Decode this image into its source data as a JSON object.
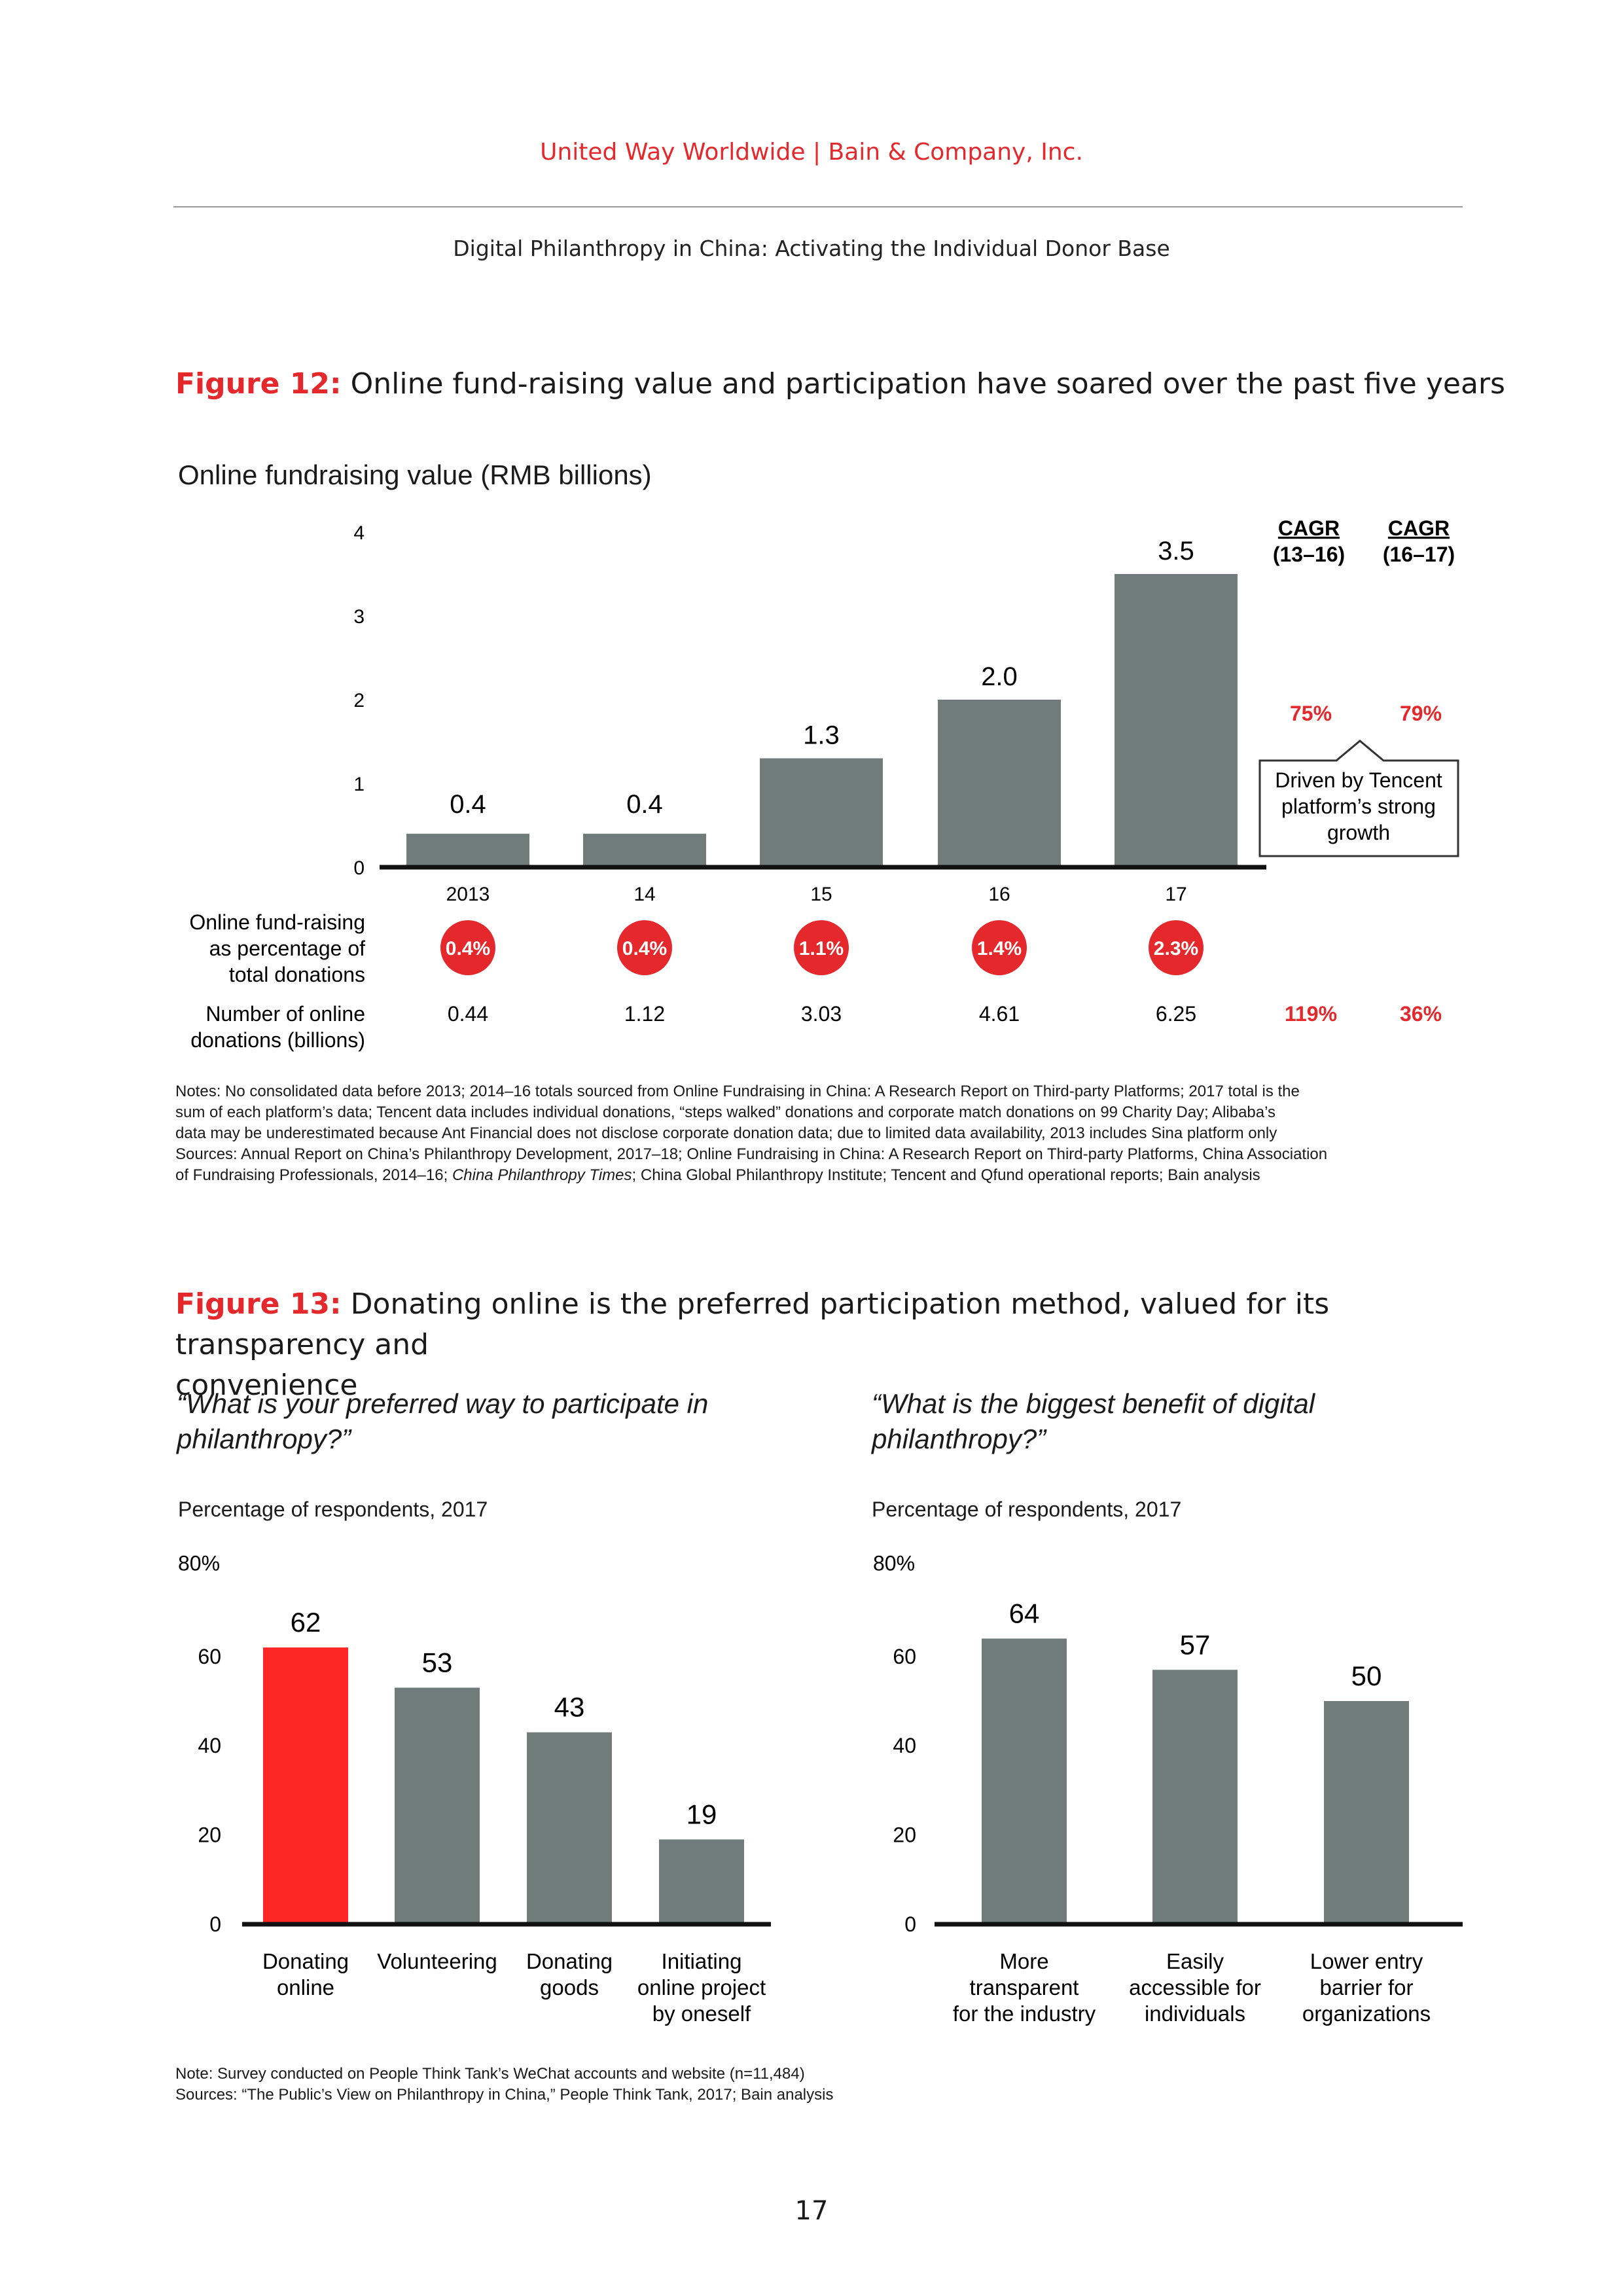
{
  "header": {
    "org": "United Way Worldwide  |  Bain & Company, Inc.",
    "report_title": "Digital Philanthropy in China: Activating the Individual Donor Base"
  },
  "figure12": {
    "label": "Figure 12:",
    "title": " Online fund-raising value and participation have soared over the past five years",
    "cagr_headers": [
      {
        "line1": "CAGR",
        "line2": "(13–16)"
      },
      {
        "line1": "CAGR",
        "line2": "(16–17)"
      }
    ],
    "value_cagr": [
      "75%",
      "79%"
    ],
    "callout": [
      "Driven by Tencent",
      "platform’s strong",
      "growth"
    ],
    "row1_label": [
      "Online fund-raising",
      "as percentage of",
      "total donations"
    ],
    "row1_values": [
      "0.4%",
      "0.4%",
      "1.1%",
      "1.4%",
      "2.3%"
    ],
    "row2_label": [
      "Number of online",
      "donations (billions)"
    ],
    "row2_values": [
      "0.44",
      "1.12",
      "3.03",
      "4.61",
      "6.25"
    ],
    "row2_cagr": [
      "119%",
      "36%"
    ],
    "notes": [
      "Notes: No consolidated data before 2013; 2014–16 totals sourced from Online Fundraising in China: A Research Report on Third-party Platforms; 2017 total is the",
      "sum of each platform’s data; Tencent data includes individual donations, “steps walked” donations and corporate match donations on 99 Charity Day; Alibaba’s",
      "data may be underestimated because Ant Financial does not disclose corporate donation data; due to limited data availability, 2013 includes Sina platform only",
      "Sources: Annual Report on China’s Philanthropy Development, 2017–18; Online Fundraising in China: A Research Report on Third-party Platforms, China Association",
      "of Fundraising Professionals, 2014–16; "
    ],
    "notes_italic": "China Philanthropy Times",
    "notes_end": "; China Global Philanthropy Institute; Tencent and Qfund operational reports; Bain analysis"
  },
  "figure13": {
    "label": "Figure 13:",
    "title_line1": " Donating online is the preferred participation method, valued for its transparency and",
    "title_line2": "convenience",
    "left_question": [
      "“What is your preferred way to participate in",
      "philanthropy?”"
    ],
    "right_question": [
      "“What is the biggest benefit of digital",
      "philanthropy?”"
    ],
    "left_subtitle": "Percentage of respondents, 2017",
    "right_subtitle": "Percentage of respondents, 2017",
    "note": "Note: Survey conducted on People Think Tank’s WeChat accounts and website (n=11,484)",
    "sources": "Sources: “The Public’s View on Philanthropy in China,” People Think Tank, 2017; Bain analysis"
  },
  "colors": {
    "bar": "#6f7c7a",
    "accent": "#e4282b",
    "highlight_bar": "#ff2626"
  },
  "page_number": "17",
  "chart_data": [
    {
      "type": "bar",
      "title": "Online fundraising value (RMB billions)",
      "categories": [
        "2013",
        "14",
        "15",
        "16",
        "17"
      ],
      "values": [
        0.4,
        0.4,
        1.3,
        2.0,
        3.5
      ],
      "value_labels": [
        "0.4",
        "0.4",
        "1.3",
        "2.0",
        "3.5"
      ],
      "yticks": [
        "0",
        "1",
        "2",
        "3",
        "4"
      ],
      "ylim": [
        0,
        4
      ],
      "xlabel": "",
      "ylabel": ""
    },
    {
      "type": "bar",
      "title": "What is your preferred way to participate in philanthropy?",
      "categories": [
        [
          "Donating",
          "online"
        ],
        [
          "Volunteering"
        ],
        [
          "Donating",
          "goods"
        ],
        [
          "Initiating",
          "online project",
          "by oneself"
        ]
      ],
      "values": [
        62,
        53,
        43,
        19
      ],
      "highlight": [
        true,
        false,
        false,
        false
      ],
      "yticks": [
        "0",
        "20",
        "40",
        "60",
        "80%"
      ],
      "ylim": [
        0,
        80
      ]
    },
    {
      "type": "bar",
      "title": "What is the biggest benefit of digital philanthropy?",
      "categories": [
        [
          "More",
          "transparent",
          "for the industry"
        ],
        [
          "Easily",
          "accessible for",
          "individuals"
        ],
        [
          "Lower entry",
          "barrier for",
          "organizations"
        ]
      ],
      "values": [
        64,
        57,
        50
      ],
      "yticks": [
        "0",
        "20",
        "40",
        "60",
        "80%"
      ],
      "ylim": [
        0,
        80
      ]
    }
  ]
}
